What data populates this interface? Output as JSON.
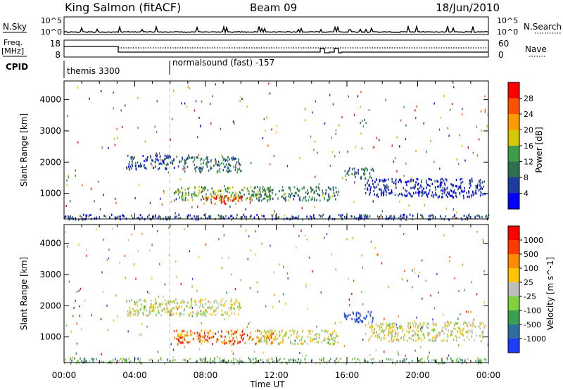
{
  "header": {
    "station": "King Salmon (fitACF)",
    "beam": "Beam 09",
    "date": "18/Jun/2010"
  },
  "top_panels": {
    "nsky_label": "N.Sky",
    "nsearch_label": "N.Search",
    "nsky_ticks": [
      "10^5",
      "10^0"
    ],
    "nsearch_ticks": [
      "10^5",
      "10^0"
    ],
    "freq_label_1": "Freq.",
    "freq_label_2": "[MHz]",
    "freq_ticks": [
      "18",
      "8"
    ],
    "nave_label": "Nave",
    "nave_ticks": [
      "60",
      "0"
    ],
    "cpid_label": "CPID",
    "cpid_segments": [
      {
        "label": "themis 3300",
        "start_hour": 0
      },
      {
        "label": "normalsound (fast) -157",
        "start_hour": 6.0
      }
    ]
  },
  "chart_data": [
    {
      "type": "heatmap",
      "name": "power",
      "ylabel": "Slant Range [km]",
      "xlabel": "Time UT",
      "x_ticks": [
        "00:00",
        "04:00",
        "08:00",
        "12:00",
        "16:00",
        "20:00",
        "00:00"
      ],
      "xlim_hours": [
        0,
        24
      ],
      "y_ticks": [
        1000,
        2000,
        3000,
        4000
      ],
      "ylim": [
        180,
        4600
      ],
      "colorbar_label": "Power [dB]",
      "colorbar_ticks": [
        "4",
        "8",
        "12",
        "16",
        "20",
        "24",
        "28"
      ],
      "colorbar_colors": [
        "#0000ff",
        "#1e3ca0",
        "#2f6e4f",
        "#3f9d4a",
        "#d6c800",
        "#ff9a00",
        "#ff5000",
        "#ff0000"
      ],
      "regions": [
        {
          "t0": 6.2,
          "t1": 11.8,
          "r0": 800,
          "r1": 1250,
          "level": 0.45
        },
        {
          "t0": 7.8,
          "t1": 10.5,
          "r0": 700,
          "r1": 950,
          "level": 0.85
        },
        {
          "t0": 11.0,
          "t1": 15.5,
          "r0": 800,
          "r1": 1250,
          "level": 0.35
        },
        {
          "t0": 3.5,
          "t1": 6.5,
          "r0": 1800,
          "r1": 2250,
          "level": 0.2
        },
        {
          "t0": 6.5,
          "t1": 10.0,
          "r0": 1700,
          "r1": 2200,
          "level": 0.3
        },
        {
          "t0": 15.8,
          "t1": 17.5,
          "r0": 1500,
          "r1": 1850,
          "level": 0.3
        },
        {
          "t0": 17.0,
          "t1": 23.8,
          "r0": 900,
          "r1": 1500,
          "level": 0.1
        },
        {
          "t0": 0.0,
          "t1": 24.0,
          "r0": 190,
          "r1": 350,
          "level": 0.2
        }
      ]
    },
    {
      "type": "heatmap",
      "name": "velocity",
      "ylabel": "Slant Range [km]",
      "xlabel": "Time UT",
      "x_ticks": [
        "00:00",
        "04:00",
        "08:00",
        "12:00",
        "16:00",
        "20:00",
        "00:00"
      ],
      "xlim_hours": [
        0,
        24
      ],
      "y_ticks": [
        1000,
        2000,
        3000,
        4000
      ],
      "ylim": [
        180,
        4600
      ],
      "colorbar_label": "Velocity [m s^-1]",
      "colorbar_ticks": [
        "1000",
        "500",
        "100",
        "25",
        "-25",
        "-100",
        "-500",
        "-1000"
      ],
      "colorbar_colors": [
        "#1e3cff",
        "#2d6ea0",
        "#3c9e50",
        "#7ed23c",
        "#bdbdbd",
        "#ffc400",
        "#ff8c00",
        "#ff3c00",
        "#ff0000"
      ],
      "regions": [
        {
          "t0": 6.2,
          "t1": 11.8,
          "r0": 800,
          "r1": 1250,
          "level": 0.78
        },
        {
          "t0": 11.0,
          "t1": 15.5,
          "r0": 800,
          "r1": 1250,
          "level": 0.5
        },
        {
          "t0": 3.5,
          "t1": 10.0,
          "r0": 1700,
          "r1": 2250,
          "level": 0.5
        },
        {
          "t0": 15.8,
          "t1": 17.5,
          "r0": 1500,
          "r1": 1850,
          "level": 0.05
        },
        {
          "t0": 17.0,
          "t1": 23.8,
          "r0": 900,
          "r1": 1500,
          "level": 0.5
        },
        {
          "t0": 0.0,
          "t1": 24.0,
          "r0": 190,
          "r1": 350,
          "level": 0.35
        }
      ]
    }
  ]
}
